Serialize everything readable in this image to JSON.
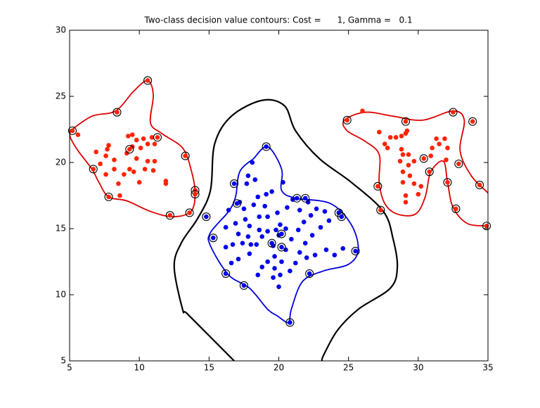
{
  "chart_data": {
    "type": "scatter",
    "title": "Two-class decision value contours: Cost =      1, Gamma =   0.1",
    "xlim": [
      5,
      35
    ],
    "ylim": [
      5,
      30
    ],
    "xticks": [
      5,
      10,
      15,
      20,
      25,
      30,
      35
    ],
    "yticks": [
      5,
      10,
      15,
      20,
      25,
      30
    ],
    "series": [
      {
        "mode": "line",
        "color": "#000000",
        "x": [
          16.8,
          15.1,
          13.4,
          13.1,
          12.5,
          13.0,
          14.2,
          15.1,
          15.4,
          16.6,
          18.8,
          20.4,
          21.2,
          22.9,
          25.2,
          27.5,
          28.2,
          28.5,
          28.0,
          25.7,
          24.2,
          23.2,
          23.1
        ],
        "y": [
          5,
          6.8,
          8.6,
          8.9,
          12.1,
          13.9,
          15.8,
          17.9,
          21.4,
          23.5,
          24.7,
          24.3,
          22.4,
          20.3,
          18.5,
          16.3,
          14.2,
          12.1,
          10.5,
          8.9,
          7.3,
          5.4,
          5
        ]
      },
      {
        "mode": "line",
        "color": "#0000dd",
        "x": [
          18.2,
          19.2,
          20.2,
          20.2,
          21.2,
          23.7,
          25.2,
          25.7,
          25.0,
          23.2,
          21.7,
          20.9,
          20.7,
          19.9,
          19.2,
          17.9,
          16.4,
          15.1,
          15.1,
          16.4,
          16.9,
          17.2,
          18.2
        ],
        "y": [
          20.3,
          21.2,
          19.5,
          17.9,
          17.3,
          16.9,
          15.3,
          13.4,
          12.3,
          11.8,
          11.0,
          8.9,
          7.9,
          8.4,
          8.9,
          10.5,
          11.5,
          13.7,
          14.7,
          16.3,
          17.4,
          19.3,
          20.3
        ]
      },
      {
        "mode": "line",
        "color": "#dd0000",
        "x": [
          5.05,
          6.6,
          8.3,
          9.6,
          10.6,
          11.0,
          10.8,
          11.6,
          13.1,
          13.7,
          14.0,
          13.7,
          12.4,
          10.8,
          9.1,
          7.8,
          7.1,
          6.6,
          5.6,
          5.05,
          5.05
        ],
        "y": [
          22.4,
          23.5,
          23.9,
          25.4,
          26.2,
          25.1,
          23.0,
          22.2,
          21.1,
          19.5,
          17.7,
          16.3,
          15.9,
          16.3,
          17.1,
          17.4,
          18.5,
          19.5,
          20.9,
          21.9,
          22.4
        ]
      },
      {
        "mode": "line",
        "color": "#dd0000",
        "x": [
          34.9,
          33.5,
          32.5,
          32.1,
          31.8,
          30.9,
          30.5,
          29.8,
          28.5,
          27.6,
          27.2,
          27.2,
          26.2,
          24.9,
          24.7,
          26.2,
          28.2,
          30.3,
          32.5,
          33.3,
          33.0,
          33.8,
          35
        ],
        "y": [
          15.2,
          15.4,
          16.6,
          18.5,
          20.1,
          19.3,
          17.4,
          16.1,
          16.1,
          16.9,
          18.5,
          20.6,
          21.6,
          22.4,
          23.2,
          23.8,
          23.5,
          23.2,
          23.9,
          23.2,
          20.9,
          19.0,
          17.7
        ]
      },
      {
        "mode": "markers",
        "color": "#ff2200",
        "x": [
          5.6,
          6.9,
          7.7,
          7.8,
          7.6,
          7.2,
          8.2,
          7.6,
          8.5,
          8.6,
          8.2,
          9.1,
          9.2,
          9.5,
          9.8,
          9.5,
          10.1,
          10.3,
          9.8,
          9.3,
          9.6,
          8.9,
          10.0,
          10.4,
          10.6,
          11.1,
          11.0,
          10.6,
          10.9,
          11.9,
          11.9,
          11.1,
          26.0,
          27.2,
          28.0,
          27.6,
          27.8,
          28.4,
          28.8,
          29.1,
          29.2,
          28.8,
          28.9,
          29.3,
          28.7,
          29.3,
          29.7,
          28.9,
          29.4,
          28.9,
          29.7,
          30.2,
          29.1,
          29.1,
          30.0,
          31.3,
          31.5,
          31.9,
          32.1,
          32.0,
          30.9,
          31.0
        ],
        "y": [
          22.1,
          20.8,
          21.0,
          21.3,
          20.5,
          19.9,
          19.5,
          19.1,
          18.4,
          17.5,
          20.2,
          20.7,
          22.0,
          22.1,
          21.7,
          21.2,
          21.1,
          21.8,
          20.3,
          19.5,
          19.3,
          19.1,
          18.5,
          19.5,
          20.1,
          20.1,
          19.4,
          21.4,
          21.9,
          18.6,
          18.4,
          21.4,
          23.9,
          22.3,
          21.9,
          21.4,
          21.1,
          21.9,
          22.0,
          22.2,
          22.4,
          21.0,
          20.6,
          20.6,
          20.1,
          19.8,
          20.1,
          19.3,
          19.0,
          18.5,
          18.4,
          18.2,
          17.5,
          17.0,
          17.6,
          21.8,
          21.4,
          21.8,
          21.1,
          20.2,
          20.5,
          21.1
        ]
      },
      {
        "mode": "markers",
        "color": "#0000ee",
        "x": [
          18.1,
          17.8,
          17.7,
          18.3,
          17.2,
          17.5,
          18.2,
          18.5,
          19.1,
          19.0,
          19.5,
          20.3,
          21.0,
          20.6,
          19.9,
          19.2,
          18.6,
          17.6,
          16.9,
          16.2,
          17.1,
          17.8,
          18.0,
          17.4,
          16.7,
          16.2,
          16.6,
          17.1,
          17.9,
          18.4,
          18.8,
          19.2,
          19.8,
          20.1,
          20.5,
          20.0,
          19.6,
          19.7,
          19.2,
          18.8,
          19.7,
          20.2,
          20.5,
          20.9,
          21.4,
          21.8,
          22.3,
          22.7,
          23.3,
          23.6,
          23.0,
          22.4,
          21.9,
          21.5,
          22.0,
          22.6,
          23.4,
          24.0,
          24.6,
          21.2,
          20.8,
          20.1,
          19.6,
          18.5,
          20.0,
          21.5,
          22.1,
          18.6,
          16.4,
          17.9
        ],
        "y": [
          20.0,
          19.0,
          18.4,
          18.7,
          17.0,
          16.5,
          16.8,
          17.4,
          17.6,
          16.7,
          17.8,
          18.5,
          17.2,
          16.6,
          16.2,
          15.9,
          15.9,
          15.7,
          15.4,
          15.1,
          14.6,
          14.4,
          13.8,
          13.9,
          13.8,
          13.6,
          12.4,
          12.7,
          13.1,
          13.8,
          14.4,
          14.8,
          14.9,
          15.3,
          15.0,
          14.5,
          13.7,
          12.9,
          12.5,
          12.1,
          12.0,
          12.5,
          13.4,
          14.2,
          14.9,
          15.5,
          16.0,
          16.5,
          16.3,
          15.6,
          15.1,
          14.5,
          13.9,
          13.2,
          12.8,
          13.0,
          13.4,
          13.0,
          13.5,
          12.4,
          11.8,
          11.5,
          11.3,
          11.5,
          10.6,
          16.4,
          17.0,
          14.9,
          16.4,
          15.2
        ]
      },
      {
        "mode": "circled",
        "color": "#ff2200",
        "x": [
          5.2,
          8.4,
          10.6,
          9.3,
          11.3,
          13.3,
          6.7,
          7.8,
          12.2,
          13.6,
          14.0,
          14.0,
          24.9,
          29.1,
          32.5,
          33.9,
          32.9,
          32.1,
          30.4,
          30.8,
          27.1,
          27.3,
          32.7,
          34.4,
          34.9
        ],
        "y": [
          22.4,
          23.8,
          26.2,
          21.0,
          21.9,
          20.5,
          19.5,
          17.4,
          16.0,
          16.2,
          17.9,
          17.6,
          23.2,
          23.1,
          23.8,
          23.1,
          19.9,
          18.5,
          20.3,
          19.3,
          18.2,
          16.4,
          16.5,
          18.3,
          15.2
        ]
      },
      {
        "mode": "circled",
        "color": "#0000ee",
        "x": [
          14.8,
          19.1,
          16.8,
          17.0,
          15.3,
          16.2,
          17.5,
          19.5,
          20.2,
          20.2,
          20.8,
          21.3,
          21.9,
          22.2,
          24.3,
          24.5,
          25.5
        ],
        "y": [
          15.9,
          21.2,
          18.4,
          16.9,
          14.3,
          11.6,
          10.7,
          13.9,
          13.6,
          14.6,
          7.9,
          17.3,
          17.3,
          11.6,
          16.2,
          15.9,
          13.3
        ]
      }
    ]
  }
}
